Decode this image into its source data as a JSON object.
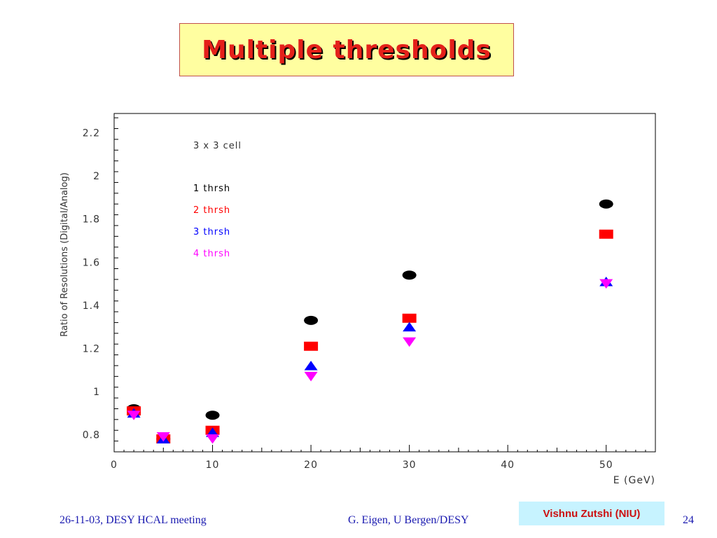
{
  "title": "Multiple thresholds",
  "footer": {
    "left": "26-11-03, DESY HCAL meeting",
    "center": "G. Eigen,  U Bergen/DESY",
    "author": "Vishnu Zutshi (NIU)",
    "page": "24"
  },
  "colors": {
    "title": "#e4201a",
    "title_box": "#fffea0",
    "author_box": "#c7f3ff"
  },
  "chart_data": {
    "type": "scatter",
    "title": "",
    "annotation": "3 x 3 cell",
    "xlabel": "E (GeV)",
    "ylabel": "Ratio of Resolutions (Digital/Analog)",
    "xlim": [
      0,
      55
    ],
    "ylim": [
      0.72,
      2.29
    ],
    "xticks": [
      0,
      10,
      20,
      30,
      40,
      50
    ],
    "xtick_labels": [
      "0",
      "10",
      "20",
      "30",
      "40",
      "50"
    ],
    "yticks": [
      0.8,
      1,
      1.2,
      1.4,
      1.6,
      1.8,
      2,
      2.2
    ],
    "ytick_labels": [
      "0.8",
      "1",
      "1.2",
      "1.4",
      "1.6",
      "1.8",
      "2",
      "2.2"
    ],
    "grid": false,
    "legend_position": "top-left",
    "x": [
      2,
      5,
      10,
      20,
      30,
      50
    ],
    "series": [
      {
        "name": "1 thrsh",
        "color": "#000000",
        "marker": "ellipse",
        "values": [
          0.92,
          0.78,
          0.89,
          1.33,
          1.54,
          1.87
        ]
      },
      {
        "name": "2 thrsh",
        "color": "#ff0000",
        "marker": "square",
        "values": [
          0.91,
          0.78,
          0.82,
          1.21,
          1.34,
          1.73
        ]
      },
      {
        "name": "3 thrsh",
        "color": "#0000ff",
        "marker": "triangle-up",
        "values": [
          0.9,
          0.78,
          0.81,
          1.12,
          1.3,
          1.51
        ]
      },
      {
        "name": "4 thrsh",
        "color": "#ff00ff",
        "marker": "triangle-down",
        "values": [
          0.89,
          0.79,
          0.78,
          1.07,
          1.23,
          1.5
        ]
      }
    ]
  }
}
